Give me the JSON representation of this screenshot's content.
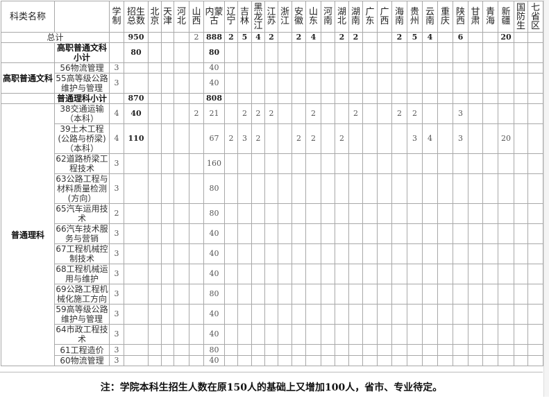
{
  "header": {
    "category": "科类名称",
    "years": "学制",
    "total": "招生总数",
    "provinces": [
      "北京",
      "天津",
      "河北",
      "山西",
      "内蒙古",
      "辽宁",
      "吉林",
      "黑龙江",
      "江苏",
      "浙江",
      "安徽",
      "山东",
      "河南",
      "湖北",
      "湖南",
      "广东",
      "广西",
      "海南",
      "贵州",
      "云南",
      "重庆",
      "陕西",
      "甘肃",
      "青海",
      "新疆",
      "国防生",
      "七省区"
    ]
  },
  "grand_total": {
    "label": "总计",
    "total": "950",
    "provinces": [
      "",
      "",
      "",
      "2",
      "888",
      "2",
      "5",
      "4",
      "2",
      "",
      "2",
      "4",
      "",
      "2",
      "2",
      "",
      "",
      "2",
      "5",
      "4",
      "",
      "6",
      "",
      "",
      "20",
      "",
      ""
    ]
  },
  "groups": [
    {
      "category": "高职普通文科",
      "subtotal": {
        "label": "高职普通文科小计",
        "total": "80",
        "provinces": [
          "",
          "",
          "",
          "",
          "80",
          "",
          "",
          "",
          "",
          "",
          "",
          "",
          "",
          "",
          "",
          "",
          "",
          "",
          "",
          "",
          "",
          "",
          "",
          "",
          "",
          "",
          ""
        ]
      },
      "rows": [
        {
          "major": "56物流管理",
          "years": "3",
          "total": "",
          "provinces": [
            "",
            "",
            "",
            "",
            "40",
            "",
            "",
            "",
            "",
            "",
            "",
            "",
            "",
            "",
            "",
            "",
            "",
            "",
            "",
            "",
            "",
            "",
            "",
            "",
            "",
            "",
            ""
          ]
        },
        {
          "major": "55高等级公路维护与管理",
          "years": "3",
          "total": "",
          "provinces": [
            "",
            "",
            "",
            "",
            "40",
            "",
            "",
            "",
            "",
            "",
            "",
            "",
            "",
            "",
            "",
            "",
            "",
            "",
            "",
            "",
            "",
            "",
            "",
            "",
            "",
            "",
            ""
          ]
        }
      ]
    },
    {
      "category": "普通理科",
      "subtotal": {
        "label": "普通理科小计",
        "total": "870",
        "provinces": [
          "",
          "",
          "",
          "",
          "808",
          "",
          "",
          "",
          "",
          "",
          "",
          "",
          "",
          "",
          "",
          "",
          "",
          "",
          "",
          "",
          "",
          "",
          "",
          "",
          "",
          "",
          ""
        ]
      },
      "rows": [
        {
          "major": "38交通运输（本科）",
          "years": "4",
          "total": "40",
          "provinces": [
            "",
            "",
            "",
            "2",
            "21",
            "",
            "2",
            "2",
            "2",
            "",
            "",
            "2",
            "",
            "",
            "2",
            "",
            "",
            "2",
            "2",
            "",
            "",
            "3",
            "",
            "",
            "",
            "",
            ""
          ]
        },
        {
          "major": "39土木工程(公路与桥梁)（本科）",
          "years": "4",
          "total": "110",
          "provinces": [
            "",
            "",
            "",
            "",
            "67",
            "2",
            "3",
            "2",
            "",
            "",
            "2",
            "2",
            "",
            "2",
            "",
            "",
            "",
            "",
            "3",
            "4",
            "",
            "3",
            "",
            "",
            "20",
            "",
            ""
          ]
        },
        {
          "major": "62道路桥梁工程技术",
          "years": "3",
          "total": "",
          "provinces": [
            "",
            "",
            "",
            "",
            "160",
            "",
            "",
            "",
            "",
            "",
            "",
            "",
            "",
            "",
            "",
            "",
            "",
            "",
            "",
            "",
            "",
            "",
            "",
            "",
            "",
            "",
            ""
          ]
        },
        {
          "major": "63公路工程与材料质量检测(方向）",
          "years": "3",
          "total": "",
          "provinces": [
            "",
            "",
            "",
            "",
            "80",
            "",
            "",
            "",
            "",
            "",
            "",
            "",
            "",
            "",
            "",
            "",
            "",
            "",
            "",
            "",
            "",
            "",
            "",
            "",
            "",
            "",
            ""
          ]
        },
        {
          "major": "65汽车运用技术",
          "years": "2",
          "total": "",
          "provinces": [
            "",
            "",
            "",
            "",
            "80",
            "",
            "",
            "",
            "",
            "",
            "",
            "",
            "",
            "",
            "",
            "",
            "",
            "",
            "",
            "",
            "",
            "",
            "",
            "",
            "",
            "",
            ""
          ]
        },
        {
          "major": "66汽车技术服务与营销",
          "years": "3",
          "total": "",
          "provinces": [
            "",
            "",
            "",
            "",
            "40",
            "",
            "",
            "",
            "",
            "",
            "",
            "",
            "",
            "",
            "",
            "",
            "",
            "",
            "",
            "",
            "",
            "",
            "",
            "",
            "",
            "",
            ""
          ]
        },
        {
          "major": "67工程机械控制技术",
          "years": "3",
          "total": "",
          "provinces": [
            "",
            "",
            "",
            "",
            "40",
            "",
            "",
            "",
            "",
            "",
            "",
            "",
            "",
            "",
            "",
            "",
            "",
            "",
            "",
            "",
            "",
            "",
            "",
            "",
            "",
            "",
            ""
          ]
        },
        {
          "major": "68工程机械运用与维护",
          "years": "3",
          "total": "",
          "provinces": [
            "",
            "",
            "",
            "",
            "40",
            "",
            "",
            "",
            "",
            "",
            "",
            "",
            "",
            "",
            "",
            "",
            "",
            "",
            "",
            "",
            "",
            "",
            "",
            "",
            "",
            "",
            ""
          ]
        },
        {
          "major": "69公路工程机械化施工方向",
          "years": "3",
          "total": "",
          "provinces": [
            "",
            "",
            "",
            "",
            "80",
            "",
            "",
            "",
            "",
            "",
            "",
            "",
            "",
            "",
            "",
            "",
            "",
            "",
            "",
            "",
            "",
            "",
            "",
            "",
            "",
            "",
            ""
          ]
        },
        {
          "major": "59高等级公路维护与管理",
          "years": "3",
          "total": "",
          "provinces": [
            "",
            "",
            "",
            "",
            "40",
            "",
            "",
            "",
            "",
            "",
            "",
            "",
            "",
            "",
            "",
            "",
            "",
            "",
            "",
            "",
            "",
            "",
            "",
            "",
            "",
            "",
            ""
          ]
        },
        {
          "major": "64市政工程技术",
          "years": "3",
          "total": "",
          "provinces": [
            "",
            "",
            "",
            "",
            "40",
            "",
            "",
            "",
            "",
            "",
            "",
            "",
            "",
            "",
            "",
            "",
            "",
            "",
            "",
            "",
            "",
            "",
            "",
            "",
            "",
            "",
            ""
          ]
        },
        {
          "major": "61工程造价",
          "years": "3",
          "total": "",
          "provinces": [
            "",
            "",
            "",
            "",
            "80",
            "",
            "",
            "",
            "",
            "",
            "",
            "",
            "",
            "",
            "",
            "",
            "",
            "",
            "",
            "",
            "",
            "",
            "",
            "",
            "",
            "",
            ""
          ]
        },
        {
          "major": "60物流管理",
          "years": "3",
          "total": "",
          "provinces": [
            "",
            "",
            "",
            "",
            "40",
            "",
            "",
            "",
            "",
            "",
            "",
            "",
            "",
            "",
            "",
            "",
            "",
            "",
            "",
            "",
            "",
            "",
            "",
            "",
            "",
            "",
            ""
          ]
        }
      ]
    }
  ],
  "note": "注：学院本科生招生人数在原150人的基础上又增加100人，省市、专业待定。"
}
